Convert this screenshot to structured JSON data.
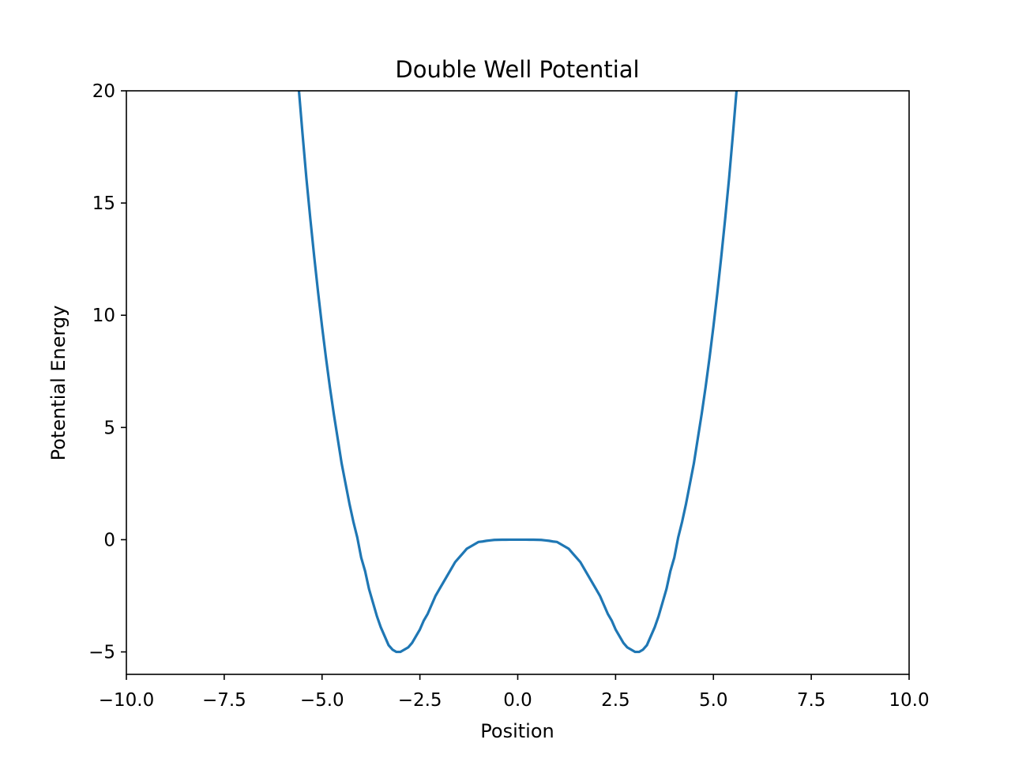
{
  "chart_data": {
    "type": "line",
    "title": "Double Well Potential",
    "xlabel": "Position",
    "ylabel": "Potential Energy",
    "xlim": [
      -10,
      10
    ],
    "ylim": [
      -6,
      20
    ],
    "xticks": [
      -10,
      -7.5,
      -5,
      -2.5,
      0,
      2.5,
      5,
      7.5,
      10
    ],
    "xtick_labels": [
      "−10.0",
      "−7.5",
      "−5.0",
      "−2.5",
      "0.0",
      "2.5",
      "5.0",
      "7.5",
      "10.0"
    ],
    "yticks": [
      -5,
      0,
      5,
      10,
      15,
      20
    ],
    "ytick_labels": [
      "−5",
      "0",
      "5",
      "10",
      "15",
      "20"
    ],
    "grid": false,
    "line_color": "#1f77b4",
    "series": [
      {
        "x": [
          -5.7,
          -5.6,
          -5.5,
          -5.4,
          -5.3,
          -5.2,
          -5.1,
          -5.0,
          -4.9,
          -4.8,
          -4.7,
          -4.6,
          -4.5,
          -4.4,
          -4.3,
          -4.2,
          -4.1,
          -4.0,
          -3.9,
          -3.8,
          -3.7,
          -3.6,
          -3.5,
          -3.4,
          -3.3,
          -3.2,
          -3.1,
          -3.0,
          -2.9,
          -2.8,
          -2.7,
          -2.6,
          -2.5,
          -2.4,
          -2.3,
          -2.2,
          -2.1,
          -2.0,
          -1.9,
          -1.8,
          -1.7,
          -1.6,
          -1.5,
          -1.4,
          -1.3,
          -1.2,
          -1.1,
          -1.0,
          -0.9,
          -0.8,
          -0.7,
          -0.6,
          -0.5,
          -0.4,
          -0.3,
          -0.2,
          -0.1,
          0.0,
          0.1,
          0.2,
          0.3,
          0.4,
          0.5,
          0.6,
          0.7,
          0.8,
          0.9,
          1.0,
          1.1,
          1.2,
          1.3,
          1.4,
          1.5,
          1.6,
          1.7,
          1.8,
          1.9,
          2.0,
          2.1,
          2.2,
          2.3,
          2.4,
          2.5,
          2.6,
          2.7,
          2.8,
          2.9,
          3.0,
          3.1,
          3.2,
          3.3,
          3.4,
          3.5,
          3.6,
          3.7,
          3.8,
          3.9,
          4.0,
          4.1,
          4.2,
          4.3,
          4.4,
          4.5,
          4.6,
          4.7,
          4.8,
          4.9,
          5.0,
          5.1,
          5.2,
          5.3,
          5.4,
          5.5,
          5.6,
          5.7
        ],
        "y": [
          22.3,
          20.2,
          18.1,
          16.1,
          14.3,
          12.6,
          11.0,
          9.5,
          8.1,
          6.8,
          5.6,
          4.5,
          3.4,
          2.5,
          1.6,
          0.8,
          0.1,
          -0.8,
          -1.4,
          -2.2,
          -2.8,
          -3.4,
          -3.9,
          -4.3,
          -4.7,
          -4.9,
          -5.0,
          -5.0,
          -4.9,
          -4.8,
          -4.6,
          -4.3,
          -4.0,
          -3.6,
          -3.3,
          -2.9,
          -2.5,
          -2.2,
          -1.9,
          -1.6,
          -1.3,
          -1.0,
          -0.8,
          -0.6,
          -0.4,
          -0.3,
          -0.2,
          -0.1,
          -0.08,
          -0.05,
          -0.03,
          -0.01,
          -0.005,
          -0.002,
          -0.001,
          0.0,
          0.0,
          0.0,
          0.0,
          0.0,
          -0.001,
          -0.002,
          -0.005,
          -0.01,
          -0.03,
          -0.05,
          -0.08,
          -0.1,
          -0.2,
          -0.3,
          -0.4,
          -0.6,
          -0.8,
          -1.0,
          -1.3,
          -1.6,
          -1.9,
          -2.2,
          -2.5,
          -2.9,
          -3.3,
          -3.6,
          -4.0,
          -4.3,
          -4.6,
          -4.8,
          -4.9,
          -5.0,
          -5.0,
          -4.9,
          -4.7,
          -4.3,
          -3.9,
          -3.4,
          -2.8,
          -2.2,
          -1.4,
          -0.8,
          0.1,
          0.8,
          1.6,
          2.5,
          3.4,
          4.5,
          5.6,
          6.8,
          8.1,
          9.5,
          11.0,
          12.6,
          14.3,
          16.1,
          18.1,
          20.2,
          22.3
        ]
      }
    ]
  }
}
